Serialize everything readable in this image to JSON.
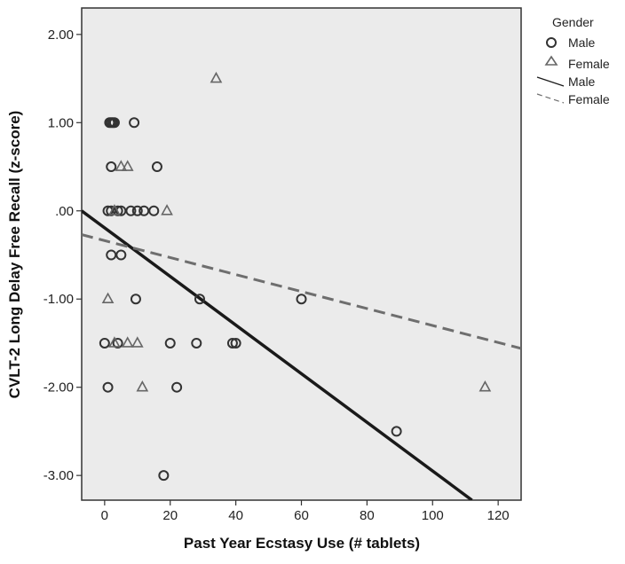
{
  "chart_data": {
    "type": "scatter",
    "xlabel": "Past Year Ecstasy Use (# tablets)",
    "ylabel": "CVLT-2 Long Delay Free Recall (z-score)",
    "xlim": [
      -7,
      127
    ],
    "ylim": [
      -3.28,
      2.3
    ],
    "x_ticks": [
      0,
      20,
      40,
      60,
      80,
      100,
      120
    ],
    "x_tick_labels": [
      "0",
      "20",
      "40",
      "60",
      "80",
      "100",
      "120"
    ],
    "y_ticks": [
      2,
      1,
      0,
      -1,
      -2,
      -3
    ],
    "y_tick_labels": [
      "2.00",
      "1.00",
      ".00",
      "-1.00",
      "-2.00",
      "-3.00"
    ],
    "background": "#ebebeb",
    "grid": false,
    "legend_position": "right",
    "legend": {
      "title": "Gender",
      "entries": [
        {
          "label": "Male",
          "kind": "circle-marker"
        },
        {
          "label": "Female",
          "kind": "triangle-marker"
        },
        {
          "label": "Male",
          "kind": "solid-line"
        },
        {
          "label": "Female",
          "kind": "dashed-line"
        }
      ]
    },
    "series": [
      {
        "name": "Male",
        "marker": "circle",
        "color": "#333333",
        "points": [
          [
            1.5,
            1
          ],
          [
            2,
            1
          ],
          [
            2.5,
            1
          ],
          [
            3,
            1
          ],
          [
            9,
            1
          ],
          [
            2,
            0.5
          ],
          [
            16,
            0.5
          ],
          [
            1,
            0
          ],
          [
            2,
            0
          ],
          [
            4,
            0
          ],
          [
            5,
            0
          ],
          [
            8,
            0
          ],
          [
            10,
            0
          ],
          [
            12,
            0
          ],
          [
            15,
            0
          ],
          [
            2,
            -0.5
          ],
          [
            5,
            -0.5
          ],
          [
            9.5,
            -1
          ],
          [
            29,
            -1
          ],
          [
            60,
            -1
          ],
          [
            0,
            -1.5
          ],
          [
            4,
            -1.5
          ],
          [
            20,
            -1.5
          ],
          [
            28,
            -1.5
          ],
          [
            39,
            -1.5
          ],
          [
            40,
            -1.5
          ],
          [
            1,
            -2
          ],
          [
            22,
            -2
          ],
          [
            89,
            -2.5
          ],
          [
            18,
            -3
          ]
        ]
      },
      {
        "name": "Female",
        "marker": "triangle",
        "color": "#666666",
        "points": [
          [
            34,
            1.5
          ],
          [
            5,
            0.5
          ],
          [
            7,
            0.5
          ],
          [
            3,
            0
          ],
          [
            19,
            0
          ],
          [
            1,
            -1
          ],
          [
            3,
            -1.5
          ],
          [
            7,
            -1.5
          ],
          [
            10,
            -1.5
          ],
          [
            11.5,
            -2
          ],
          [
            116,
            -2
          ]
        ]
      }
    ],
    "fit_lines": [
      {
        "name": "Male",
        "style": "solid",
        "color": "#1a1a1a",
        "x": [
          -7,
          112
        ],
        "y": [
          0,
          -3.28
        ]
      },
      {
        "name": "Female",
        "style": "dashed",
        "color": "#6e6e6e",
        "x": [
          -7,
          127
        ],
        "y": [
          -0.27,
          -1.56
        ]
      }
    ]
  }
}
